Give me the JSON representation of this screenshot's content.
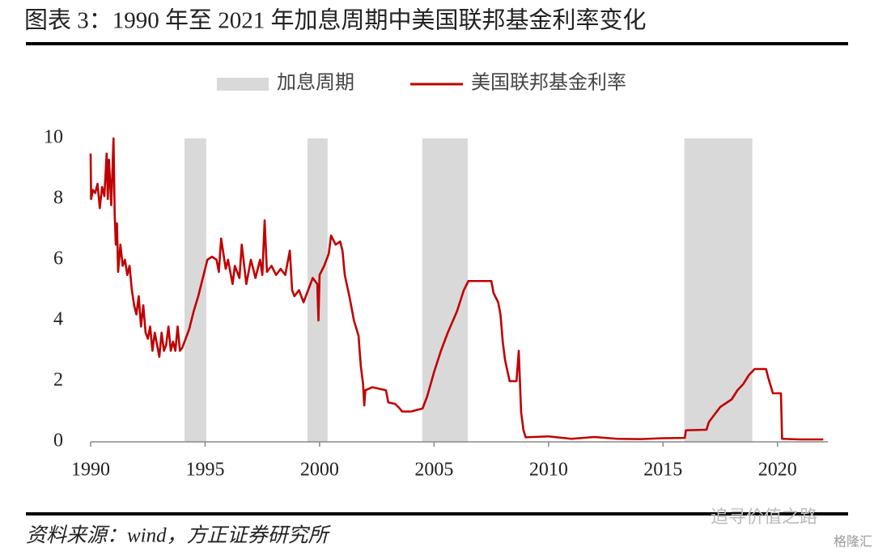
{
  "chart_data": {
    "type": "line",
    "title": "图表 3：1990 年至 2021 年加息周期中美国联邦基金利率变化",
    "source": "资料来源：wind，方正证券研究所",
    "watermark": "追寻价值之路",
    "watermark2": "格隆汇",
    "xlim": [
      1990,
      2022.2
    ],
    "xticks": [
      1990,
      1995,
      2000,
      2005,
      2010,
      2015,
      2020
    ],
    "ylim": [
      0,
      10
    ],
    "yticks": [
      0,
      2,
      4,
      6,
      8,
      10
    ],
    "bands": {
      "name": "加息周期",
      "color": "#d9d9d9",
      "ranges": [
        [
          1994.1,
          1995.05
        ],
        [
          1999.47,
          2000.35
        ],
        [
          2004.49,
          2006.47
        ],
        [
          2015.93,
          2018.9
        ]
      ]
    },
    "series": [
      {
        "name": "美国联邦基金利率",
        "color": "#c00000",
        "x": [
          1990.0,
          1990.02,
          1990.1,
          1990.2,
          1990.3,
          1990.4,
          1990.5,
          1990.6,
          1990.7,
          1990.75,
          1990.8,
          1990.9,
          1991.0,
          1991.05,
          1991.1,
          1991.15,
          1991.2,
          1991.3,
          1991.4,
          1991.5,
          1991.6,
          1991.7,
          1991.8,
          1991.9,
          1992.0,
          1992.1,
          1992.2,
          1992.3,
          1992.4,
          1992.5,
          1992.6,
          1992.7,
          1992.8,
          1992.9,
          1993.0,
          1993.1,
          1993.2,
          1993.3,
          1993.4,
          1993.5,
          1993.6,
          1993.7,
          1993.8,
          1993.9,
          1994.0,
          1994.1,
          1994.3,
          1994.5,
          1994.7,
          1994.9,
          1995.1,
          1995.3,
          1995.5,
          1995.6,
          1995.7,
          1995.9,
          1996.0,
          1996.2,
          1996.3,
          1996.5,
          1996.6,
          1996.8,
          1997.0,
          1997.2,
          1997.4,
          1997.5,
          1997.6,
          1997.7,
          1997.9,
          1998.1,
          1998.3,
          1998.5,
          1998.7,
          1998.8,
          1998.9,
          1999.1,
          1999.3,
          1999.5,
          1999.7,
          1999.9,
          1999.95,
          2000.0,
          2000.2,
          2000.4,
          2000.5,
          2000.7,
          2000.9,
          2001.0,
          2001.1,
          2001.3,
          2001.5,
          2001.7,
          2001.8,
          2001.9,
          2001.95,
          2002.0,
          2002.3,
          2002.6,
          2002.9,
          2003.0,
          2003.3,
          2003.5,
          2003.6,
          2004.0,
          2004.5,
          2004.7,
          2005.0,
          2005.3,
          2005.6,
          2006.0,
          2006.3,
          2006.5,
          2007.0,
          2007.5,
          2007.6,
          2007.8,
          2007.9,
          2008.0,
          2008.1,
          2008.3,
          2008.6,
          2008.7,
          2008.8,
          2008.9,
          2009.0,
          2010.0,
          2011.0,
          2012.0,
          2013.0,
          2014.0,
          2015.0,
          2015.95,
          2016.0,
          2016.9,
          2017.0,
          2017.25,
          2017.5,
          2018.0,
          2018.25,
          2018.5,
          2018.75,
          2019.0,
          2019.5,
          2019.6,
          2019.8,
          2020.15,
          2020.2,
          2021.0,
          2022.0
        ],
        "values": [
          9.5,
          8.0,
          8.3,
          8.2,
          8.5,
          7.7,
          8.4,
          8.1,
          9.5,
          8.0,
          9.3,
          7.8,
          10.0,
          7.5,
          6.5,
          7.2,
          5.6,
          6.5,
          5.8,
          6.0,
          5.5,
          5.8,
          5.0,
          4.5,
          4.2,
          4.8,
          3.8,
          4.5,
          3.6,
          3.4,
          3.8,
          3.0,
          3.6,
          3.2,
          2.8,
          3.6,
          3.0,
          3.2,
          3.8,
          3.0,
          3.3,
          3.0,
          3.8,
          3.0,
          3.1,
          3.3,
          3.7,
          4.3,
          4.8,
          5.4,
          6.0,
          6.1,
          6.0,
          5.6,
          6.7,
          5.7,
          6.0,
          5.2,
          5.8,
          5.4,
          6.5,
          5.2,
          6.0,
          5.4,
          6.0,
          5.5,
          7.3,
          5.6,
          5.8,
          5.5,
          5.7,
          5.5,
          6.3,
          5.0,
          4.8,
          5.0,
          4.6,
          5.0,
          5.4,
          5.2,
          4.0,
          5.5,
          5.8,
          6.2,
          6.8,
          6.5,
          6.6,
          6.3,
          5.5,
          4.8,
          4.0,
          3.5,
          2.5,
          1.9,
          1.2,
          1.7,
          1.8,
          1.75,
          1.7,
          1.3,
          1.25,
          1.1,
          1.0,
          1.0,
          1.1,
          1.5,
          2.3,
          3.0,
          3.6,
          4.3,
          5.0,
          5.3,
          5.3,
          5.3,
          4.9,
          4.6,
          4.2,
          3.3,
          2.7,
          2.0,
          2.0,
          3.0,
          1.0,
          0.4,
          0.15,
          0.18,
          0.1,
          0.16,
          0.1,
          0.09,
          0.12,
          0.13,
          0.38,
          0.4,
          0.65,
          0.9,
          1.15,
          1.4,
          1.7,
          1.9,
          2.2,
          2.4,
          2.4,
          2.1,
          1.6,
          1.6,
          0.1,
          0.08,
          0.08
        ]
      }
    ]
  }
}
